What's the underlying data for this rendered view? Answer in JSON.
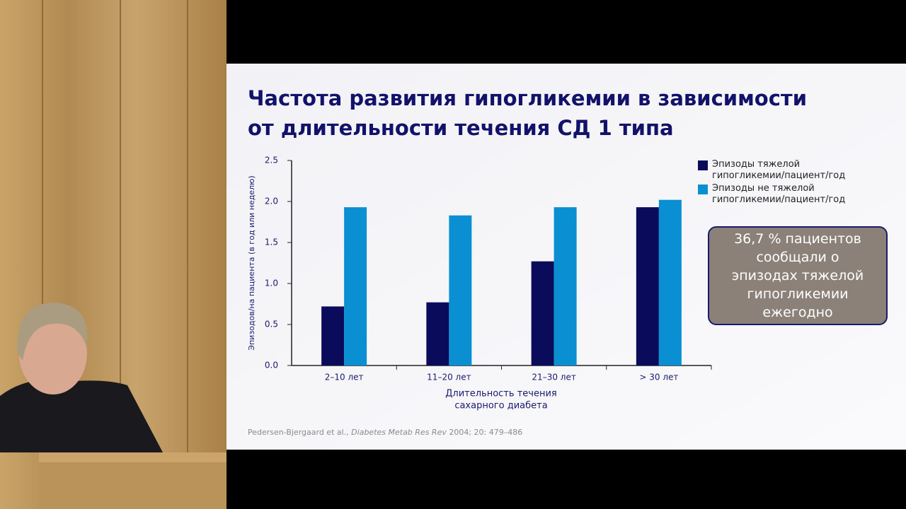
{
  "chart_data": {
    "type": "bar",
    "title": [
      "Частота развития гипогликемии в зависимости",
      "от длительности течения СД 1 типа"
    ],
    "ylabel": "Эпизодов/на пациента (в год или неделю)",
    "xlabel": [
      "Длительность течения",
      "сахарного диабета"
    ],
    "categories": [
      "2–10 лет",
      "11–20 лет",
      "21–30 лет",
      "> 30 лет"
    ],
    "series": [
      {
        "name": "Эпизоды тяжелой гипогликемии/пациент/год",
        "color": "#0b0b5c",
        "values": [
          0.72,
          0.77,
          1.27,
          1.93
        ]
      },
      {
        "name": "Эпизоды не тяжелой гипогликемии/пациент/год",
        "color": "#0a8fd2",
        "values": [
          1.93,
          1.83,
          1.93,
          2.02
        ]
      }
    ],
    "ylim": [
      0,
      2.5
    ],
    "yticks": [
      {
        "value": 0,
        "label": "0.0"
      },
      {
        "value": 0.5,
        "label": "0.5"
      },
      {
        "value": 1,
        "label": "1.0"
      },
      {
        "value": 1.5,
        "label": "1.5"
      },
      {
        "value": 2,
        "label": "2.0"
      },
      {
        "value": 2.5,
        "label": "2.5"
      }
    ],
    "grid": false,
    "legend": "top-right",
    "annotation": "36,7 % пациентов сообщали о эпизодах тяжелой гипогликемии ежегодно",
    "citation": {
      "authors": "Pedersen-Bjergaard et al.,",
      "journal": "Diabetes Metab Res Rev",
      "details": "2004; 20: 479–486"
    }
  }
}
